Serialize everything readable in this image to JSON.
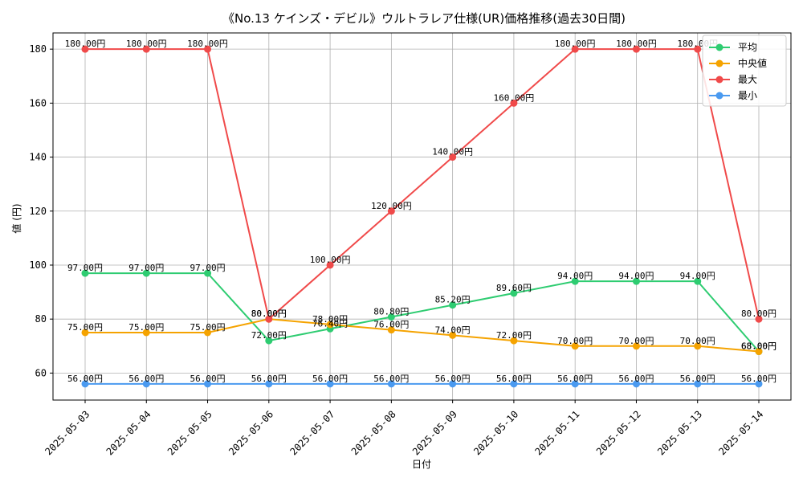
{
  "chart_data": {
    "type": "line",
    "title": "《No.13 ケインズ・デビル》ウルトラレア仕様(UR)価格推移(過去30日間)",
    "xlabel": "日付",
    "ylabel": "値 (円)",
    "categories": [
      "2025-05-03",
      "2025-05-04",
      "2025-05-05",
      "2025-05-06",
      "2025-05-07",
      "2025-05-08",
      "2025-05-09",
      "2025-05-10",
      "2025-05-11",
      "2025-05-12",
      "2025-05-13",
      "2025-05-14"
    ],
    "ylim": [
      50,
      186
    ],
    "yticks": [
      60,
      80,
      100,
      120,
      140,
      160,
      180
    ],
    "grid": true,
    "legend_position": "top-right",
    "label_suffix": "円",
    "series": [
      {
        "name": "平均",
        "color": "#2ecc71",
        "values": [
          97,
          97,
          97,
          72,
          76.4,
          80.8,
          85.2,
          89.6,
          94,
          94,
          94,
          68
        ]
      },
      {
        "name": "中央値",
        "color": "#f5a300",
        "values": [
          75,
          75,
          75,
          80,
          78,
          76,
          74,
          72,
          70,
          70,
          70,
          68
        ]
      },
      {
        "name": "最大",
        "color": "#f04a4a",
        "values": [
          180,
          180,
          180,
          80,
          100,
          120,
          140,
          160,
          180,
          180,
          180,
          80
        ]
      },
      {
        "name": "最小",
        "color": "#4a9af0",
        "values": [
          56,
          56,
          56,
          56,
          56,
          56,
          56,
          56,
          56,
          56,
          56,
          56
        ]
      }
    ]
  }
}
